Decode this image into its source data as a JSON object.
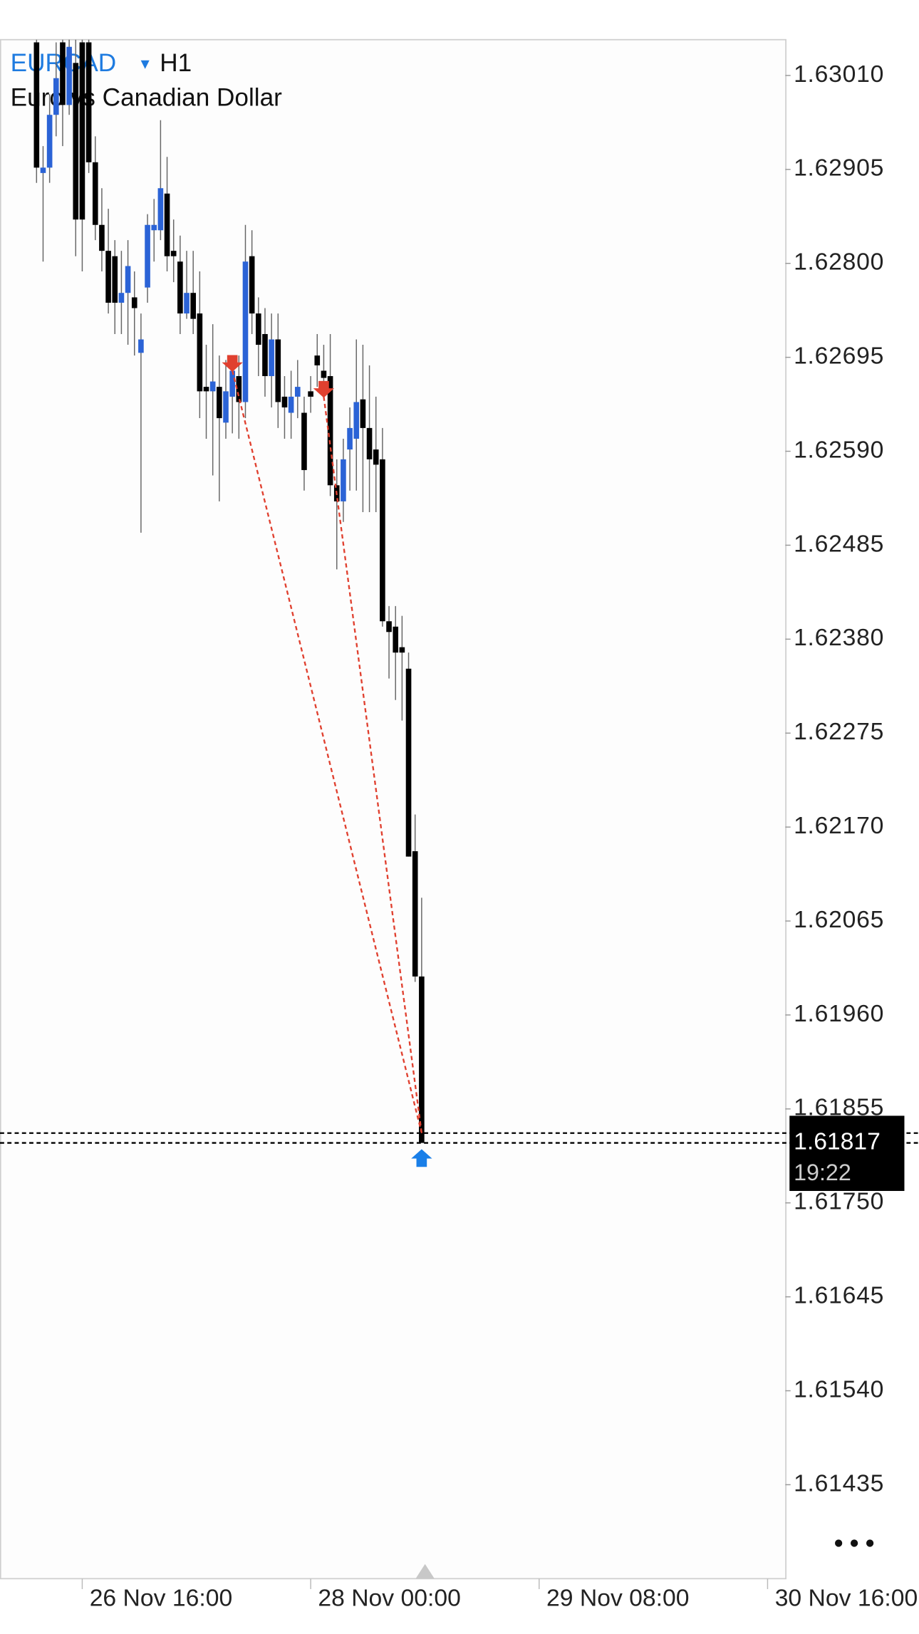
{
  "chart_data": {
    "type": "candlestick",
    "title": "EURCAD",
    "timeframe": "H1",
    "subtitle": "Euro vs Canadian Dollar",
    "x": [
      0,
      1,
      2,
      3,
      4,
      5,
      6,
      7,
      8,
      9,
      10,
      11,
      12,
      13,
      14,
      15,
      16,
      17,
      18,
      19,
      20,
      21,
      22,
      23,
      24,
      25,
      26,
      27,
      28,
      29,
      30,
      31,
      32,
      33,
      34,
      35,
      36,
      37,
      38,
      39,
      40,
      41,
      42,
      43,
      44,
      45,
      46,
      47,
      48,
      49,
      50,
      51,
      52,
      53,
      54,
      55,
      56,
      57,
      58,
      59
    ],
    "open": [
      1.63047,
      1.62901,
      1.62907,
      1.62966,
      1.63047,
      1.62977,
      1.63024,
      1.63047,
      1.63047,
      1.62913,
      1.62843,
      1.62814,
      1.62808,
      1.62756,
      1.62767,
      1.62762,
      1.627,
      1.62773,
      1.62837,
      1.62837,
      1.62878,
      1.62814,
      1.62802,
      1.62744,
      1.62767,
      1.62744,
      1.62662,
      1.62657,
      1.62662,
      1.62622,
      1.62651,
      1.62674,
      1.62645,
      1.62808,
      1.62744,
      1.62721,
      1.62674,
      1.62715,
      1.62651,
      1.62633,
      1.62651,
      1.62633,
      1.62657,
      1.62697,
      1.6268,
      1.62674,
      1.62552,
      1.62534,
      1.62592,
      1.62604,
      1.62648,
      1.62616,
      1.62592,
      1.62581,
      1.624,
      1.62394,
      1.62371,
      1.62347,
      1.62143,
      1.62003
    ],
    "high": [
      1.6305,
      1.62931,
      1.62989,
      1.63047,
      1.6305,
      1.6305,
      1.6305,
      1.6305,
      1.6305,
      1.62942,
      1.62884,
      1.62861,
      1.62826,
      1.62814,
      1.62826,
      1.62791,
      1.62744,
      1.62855,
      1.62872,
      1.6296,
      1.62919,
      1.62849,
      1.62831,
      1.62814,
      1.62814,
      1.62791,
      1.62709,
      1.62732,
      1.62697,
      1.62692,
      1.62697,
      1.62697,
      1.62843,
      1.62837,
      1.62762,
      1.6275,
      1.62744,
      1.62744,
      1.62674,
      1.6268,
      1.62692,
      1.62651,
      1.62674,
      1.62721,
      1.62709,
      1.62721,
      1.62581,
      1.62604,
      1.62639,
      1.62715,
      1.62709,
      1.62686,
      1.62651,
      1.62616,
      1.62417,
      1.62417,
      1.62406,
      1.62365,
      1.62184,
      1.62091
    ],
    "low": [
      1.6289,
      1.62802,
      1.6289,
      1.62942,
      1.62931,
      1.62966,
      1.62808,
      1.62791,
      1.62901,
      1.62826,
      1.62791,
      1.62744,
      1.62721,
      1.62721,
      1.62709,
      1.62697,
      1.62499,
      1.62756,
      1.62802,
      1.62826,
      1.62791,
      1.62779,
      1.62721,
      1.62738,
      1.62721,
      1.62627,
      1.62604,
      1.62563,
      1.62534,
      1.62604,
      1.6261,
      1.62604,
      1.62627,
      1.62721,
      1.62674,
      1.62651,
      1.62639,
      1.62616,
      1.62604,
      1.62604,
      1.62627,
      1.62546,
      1.62633,
      1.62662,
      1.62657,
      1.6254,
      1.62458,
      1.62511,
      1.62546,
      1.62546,
      1.62522,
      1.62522,
      1.62522,
      1.62394,
      1.62336,
      1.62312,
      1.62289,
      1.62137,
      1.61997,
      1.61817
    ],
    "close": [
      1.62907,
      1.62907,
      1.62966,
      1.63007,
      1.62977,
      1.63042,
      1.62849,
      1.62849,
      1.62913,
      1.62843,
      1.62814,
      1.62756,
      1.62756,
      1.62767,
      1.62797,
      1.6275,
      1.62715,
      1.62843,
      1.62843,
      1.62884,
      1.62808,
      1.62808,
      1.62744,
      1.62767,
      1.62738,
      1.62657,
      1.62657,
      1.62668,
      1.62627,
      1.62657,
      1.6268,
      1.62645,
      1.62802,
      1.62744,
      1.62709,
      1.62674,
      1.62715,
      1.62645,
      1.62639,
      1.62651,
      1.62662,
      1.62569,
      1.62651,
      1.62686,
      1.62672,
      1.62552,
      1.62534,
      1.62581,
      1.62616,
      1.62645,
      1.62616,
      1.62581,
      1.62575,
      1.624,
      1.62388,
      1.62365,
      1.62365,
      1.62137,
      1.62003,
      1.61817
    ],
    "up_color": "#2b63d6",
    "down_color": "#000000",
    "xlim": [
      -5.6,
      114.72
    ],
    "xticks": [
      {
        "value": 7,
        "label": "26 Nov 16:00"
      },
      {
        "value": 42,
        "label": "28 Nov 00:00"
      },
      {
        "value": 77,
        "label": "29 Nov 08:00"
      },
      {
        "value": 112,
        "label": "30 Nov 16:00"
      }
    ],
    "ylim": [
      1.6133,
      1.6305
    ],
    "yticks": [
      {
        "value": 1.6301,
        "label": "1.63010"
      },
      {
        "value": 1.62905,
        "label": "1.62905"
      },
      {
        "value": 1.628,
        "label": "1.62800"
      },
      {
        "value": 1.62695,
        "label": "1.62695"
      },
      {
        "value": 1.6259,
        "label": "1.62590"
      },
      {
        "value": 1.62485,
        "label": "1.62485"
      },
      {
        "value": 1.6238,
        "label": "1.62380"
      },
      {
        "value": 1.62275,
        "label": "1.62275"
      },
      {
        "value": 1.6217,
        "label": "1.62170"
      },
      {
        "value": 1.62065,
        "label": "1.62065"
      },
      {
        "value": 1.6196,
        "label": "1.61960"
      },
      {
        "value": 1.61855,
        "label": "1.61855"
      },
      {
        "value": 1.6175,
        "label": "1.61750"
      },
      {
        "value": 1.61645,
        "label": "1.61645"
      },
      {
        "value": 1.6154,
        "label": "1.61540"
      },
      {
        "value": 1.61435,
        "label": "1.61435"
      }
    ],
    "price_lines": [
      1.61828,
      1.61817
    ],
    "current_price": 1.61817,
    "timer": "19:22",
    "trades": [
      {
        "entry_x": 30,
        "entry_price": 1.6268,
        "exit_x": 59,
        "exit_price": 1.61828
      },
      {
        "entry_x": 44,
        "entry_price": 1.62651,
        "exit_x": 59,
        "exit_price": 1.61828
      }
    ],
    "entry_color": "#e0402f",
    "exit_color": "#1a7fe8"
  }
}
